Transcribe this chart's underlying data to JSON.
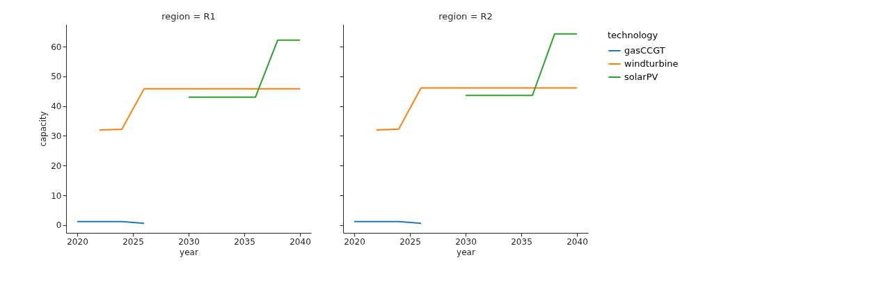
{
  "chart_data": [
    {
      "type": "line",
      "title": "region = R1",
      "xlabel": "year",
      "ylabel": "capacity",
      "xlim": [
        2019,
        2041
      ],
      "ylim": [
        -2.6,
        67.5
      ],
      "xticks": [
        2020,
        2025,
        2030,
        2035,
        2040
      ],
      "yticks": [
        0,
        10,
        20,
        30,
        40,
        50,
        60
      ],
      "grid": false,
      "legend": "right",
      "series": [
        {
          "name": "gasCCGT",
          "color": "#1f77b4",
          "x": [
            2020,
            2022,
            2024,
            2026
          ],
          "values": [
            1.2,
            1.2,
            1.2,
            0.6
          ]
        },
        {
          "name": "windturbine",
          "color": "#ff7f0e",
          "x": [
            2022,
            2024,
            2026,
            2028,
            2030,
            2032,
            2034,
            2036,
            2038,
            2040
          ],
          "values": [
            32,
            32.2,
            45.8,
            45.8,
            45.8,
            45.8,
            45.8,
            45.8,
            45.8,
            45.8
          ]
        },
        {
          "name": "solarPV",
          "color": "#2ca02c",
          "x": [
            2030,
            2032,
            2034,
            2036,
            2038,
            2040
          ],
          "values": [
            43,
            43,
            43,
            43,
            62.2,
            62.2
          ]
        }
      ]
    },
    {
      "type": "line",
      "title": "region = R2",
      "xlabel": "year",
      "xlim": [
        2019,
        2041
      ],
      "ylim": [
        -2.6,
        67.5
      ],
      "xticks": [
        2020,
        2025,
        2030,
        2035,
        2040
      ],
      "yticks": [
        0,
        10,
        20,
        30,
        40,
        50,
        60
      ],
      "tick_labels": "x",
      "grid": false,
      "legend": "right",
      "legend_title": "technology",
      "series": [
        {
          "name": "gasCCGT",
          "color": "#1f77b4",
          "x": [
            2020,
            2022,
            2024,
            2026
          ],
          "values": [
            1.2,
            1.2,
            1.2,
            0.6
          ]
        },
        {
          "name": "windturbine",
          "color": "#ff7f0e",
          "x": [
            2022,
            2024,
            2026,
            2028,
            2030,
            2032,
            2034,
            2036,
            2038,
            2040
          ],
          "values": [
            32,
            32.3,
            46.1,
            46.1,
            46.1,
            46.1,
            46.1,
            46.1,
            46.1,
            46.1
          ]
        },
        {
          "name": "solarPV",
          "color": "#2ca02c",
          "x": [
            2030,
            2032,
            2034,
            2036,
            2038,
            2040
          ],
          "values": [
            43.6,
            43.6,
            43.6,
            43.6,
            64.3,
            64.3
          ]
        }
      ]
    }
  ]
}
